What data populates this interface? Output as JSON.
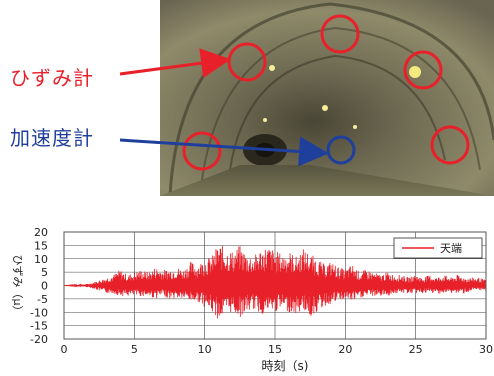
{
  "annotations": {
    "strain_gauge_label": "ひずみ計",
    "accelerometer_label": "加速度計",
    "colors": {
      "strain": "#e8202a",
      "accel": "#1f3f9c"
    }
  },
  "chart_data": {
    "type": "line",
    "xlabel": "時刻（s)",
    "ylabel": "ひずみ（μ）",
    "xlim": [
      0,
      30
    ],
    "ylim": [
      -20,
      20
    ],
    "x_ticks": [
      0,
      5,
      10,
      15,
      20,
      25,
      30
    ],
    "y_ticks": [
      20,
      15,
      10,
      5,
      0,
      -5,
      -10,
      -15,
      -20
    ],
    "grid": true,
    "legend_position": "top-right",
    "series": [
      {
        "name": "天端",
        "color": "#e8202a",
        "x": [
          0,
          1.5,
          2,
          2.5,
          3,
          3.5,
          4,
          4.5,
          5,
          5.5,
          6,
          6.5,
          7,
          7.5,
          8,
          8.5,
          9,
          9.5,
          10,
          10.5,
          11,
          11.5,
          12,
          12.5,
          13,
          13.5,
          14,
          14.5,
          15,
          15.5,
          16,
          16.5,
          17,
          17.5,
          18,
          18.5,
          19,
          19.5,
          20,
          20.5,
          21,
          21.5,
          22,
          22.5,
          23,
          23.5,
          24,
          24.5,
          25,
          25.5,
          26,
          26.5,
          27,
          27.5,
          28,
          28.5,
          29,
          29.5,
          30
        ],
        "y_max": [
          0,
          0.5,
          1,
          2,
          3,
          4,
          6,
          4,
          5,
          6,
          5,
          7,
          6,
          6,
          7,
          6,
          9,
          8,
          10,
          11,
          16,
          14,
          13,
          15,
          12,
          11,
          14,
          15,
          13,
          12,
          13,
          11,
          14,
          12,
          10,
          8,
          9,
          7,
          6,
          8,
          5,
          6,
          5,
          4,
          5,
          4,
          4,
          3,
          4,
          3,
          4,
          3,
          4,
          3,
          4,
          3,
          3,
          3,
          2
        ],
        "y_min": [
          0,
          -0.5,
          -1,
          -2,
          -3,
          -3,
          -4,
          -4,
          -4,
          -4,
          -4,
          -5,
          -4,
          -5,
          -5,
          -5,
          -6,
          -6,
          -8,
          -10,
          -13,
          -11,
          -10,
          -12,
          -10,
          -9,
          -11,
          -10,
          -10,
          -9,
          -10,
          -11,
          -9,
          -12,
          -10,
          -8,
          -7,
          -6,
          -5,
          -6,
          -5,
          -4,
          -4,
          -4,
          -4,
          -3,
          -3,
          -3,
          -3,
          -3,
          -3,
          -3,
          -3,
          -3,
          -3,
          -3,
          -2,
          -2,
          -2
        ]
      }
    ]
  }
}
